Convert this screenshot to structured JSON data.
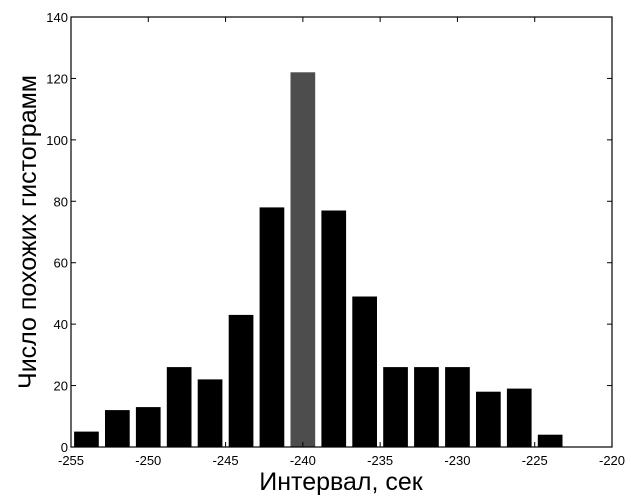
{
  "chart_data": {
    "type": "bar",
    "xlabel": "Интервал, сек",
    "ylabel": "Число похожих гистограмм",
    "xlim": [
      -255,
      -220
    ],
    "ylim": [
      0,
      140
    ],
    "x_ticks": [
      -255,
      -250,
      -245,
      -240,
      -235,
      -230,
      -225,
      -220
    ],
    "x_tick_labels": [
      "-255",
      "-250",
      "-245",
      "-240",
      "-235",
      "-230",
      "-225",
      "-220"
    ],
    "y_ticks": [
      0,
      20,
      40,
      60,
      80,
      100,
      120,
      140
    ],
    "y_tick_labels": [
      "0",
      "20",
      "40",
      "60",
      "80",
      "100",
      "120",
      "140"
    ],
    "bar_width": 1.6,
    "x": [
      -254,
      -252,
      -250,
      -248,
      -246,
      -244,
      -242,
      -240,
      -238,
      -236,
      -234,
      -232,
      -230,
      -228,
      -226,
      -224
    ],
    "values": [
      5,
      12,
      13,
      26,
      22,
      43,
      78,
      122,
      77,
      49,
      26,
      26,
      26,
      18,
      19,
      4
    ],
    "bar_colors": [
      "#000000",
      "#000000",
      "#000000",
      "#000000",
      "#000000",
      "#000000",
      "#000000",
      "#4d4d4d",
      "#000000",
      "#000000",
      "#000000",
      "#000000",
      "#000000",
      "#000000",
      "#000000",
      "#000000"
    ],
    "grid": false,
    "legend": "none"
  }
}
